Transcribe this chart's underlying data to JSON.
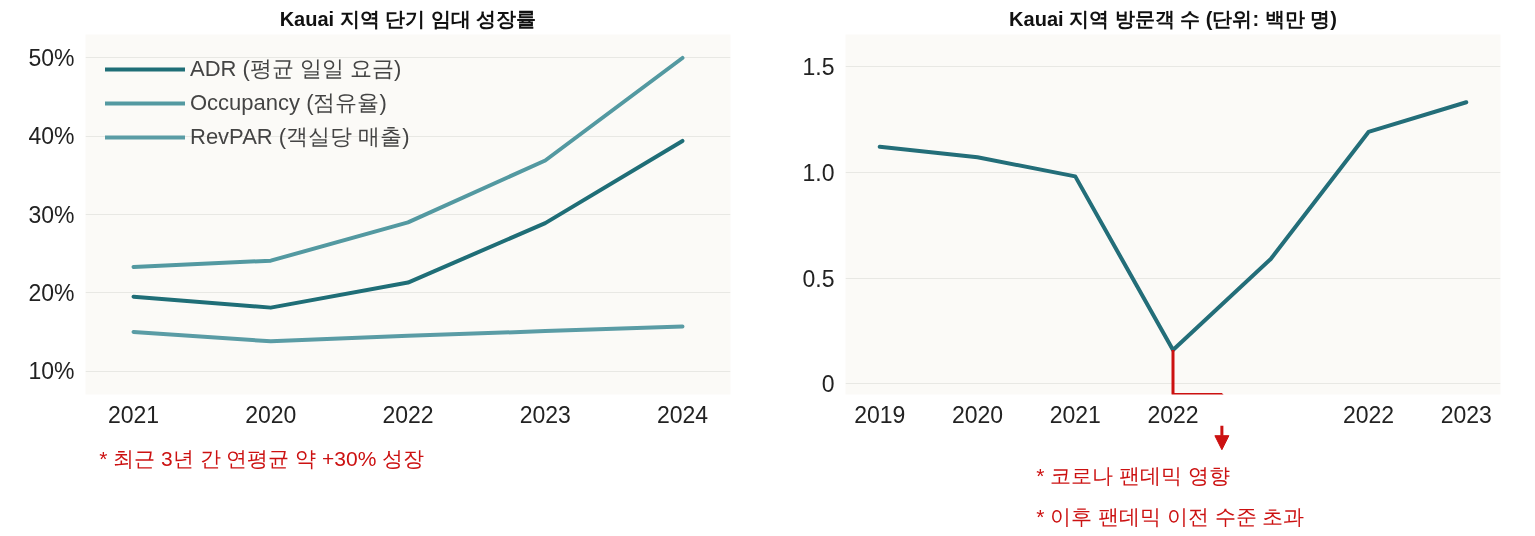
{
  "chart_data": [
    {
      "type": "line",
      "title": "Kauai 지역 단기 임대 성장률",
      "categories": [
        "2021",
        "2020",
        "2022",
        "2023",
        "2024"
      ],
      "series": [
        {
          "name": "ADR (평균 일일 요금)",
          "color": "#1f6e77",
          "values": [
            19.5,
            18.1,
            21.3,
            28.9,
            39.4
          ]
        },
        {
          "name": "Occupancy (점유율)",
          "color": "#5399a1",
          "values": [
            23.3,
            24.1,
            29,
            36.9,
            50
          ]
        },
        {
          "name": "RevPAR (객실당 매출)",
          "color": "#5a9ca5",
          "values": [
            15,
            13.8,
            14.5,
            15.1,
            15.7
          ]
        }
      ],
      "ylim": [
        7,
        53
      ],
      "yticks": [
        {
          "value": 10,
          "label": "10%"
        },
        {
          "value": 20,
          "label": "20%"
        },
        {
          "value": 30,
          "label": "30%"
        },
        {
          "value": 40,
          "label": "40%"
        },
        {
          "value": 50,
          "label": "50%"
        }
      ],
      "grid": "y",
      "legend": "top left",
      "line_style": "solid",
      "annotations": [
        "* 최근 3년 간 연평균 약 +30% 성장"
      ]
    },
    {
      "type": "line",
      "title": "Kauai 지역 방문객 수 (단위: 백만 명)",
      "series": [
        {
          "color": "#236e79",
          "values": [
            1.12,
            1.07,
            0.98,
            0.16,
            0.59,
            1.19,
            1.33
          ]
        }
      ],
      "categories": [
        "2019",
        "2020",
        "2021",
        "2022",
        null,
        "2022",
        "2023"
      ],
      "ylim": [
        -0.05,
        1.65
      ],
      "yticks": [
        0,
        0.5,
        {
          "value": 1,
          "label": "1.0"
        },
        1.5
      ],
      "grid": "y",
      "line_style": "solid",
      "annotations": [
        "* 코로나 팬데믹 영향",
        "* 이후 팬데믹 이전 수준 초과"
      ]
    }
  ]
}
